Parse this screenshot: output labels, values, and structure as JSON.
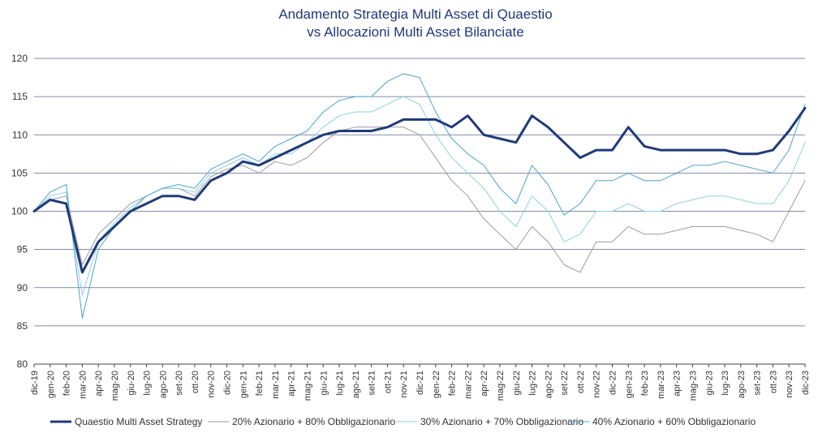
{
  "chart_data": {
    "type": "line",
    "title": "Andamento Strategia Multi Asset di Quaestio",
    "subtitle": "vs Allocazioni Multi Asset Bilanciate",
    "xlabel": "",
    "ylabel": "",
    "ylim": [
      80,
      120
    ],
    "yticks": [
      80,
      85,
      90,
      95,
      100,
      105,
      110,
      115,
      120
    ],
    "grid": true,
    "legend_position": "bottom",
    "x": [
      "dic-19",
      "gen-20",
      "feb-20",
      "mar-20",
      "apr-20",
      "mag-20",
      "giu-20",
      "lug-20",
      "ago-20",
      "set-20",
      "ott-20",
      "nov-20",
      "dic-20",
      "gen-21",
      "feb-21",
      "mar-21",
      "apr-21",
      "mag-21",
      "giu-21",
      "lug-21",
      "ago-21",
      "set-21",
      "ott-21",
      "nov-21",
      "dic-21",
      "gen-22",
      "feb-22",
      "mar-22",
      "apr-22",
      "mag-22",
      "giu-22",
      "lug-22",
      "ago-22",
      "set-22",
      "ott-22",
      "nov-22",
      "dic-22",
      "gen-23",
      "feb-23",
      "mar-23",
      "apr-23",
      "mag-23",
      "giu-23",
      "lug-23",
      "ago-23",
      "set-23",
      "ott-23",
      "nov-23",
      "dic-23"
    ],
    "series": [
      {
        "name": "Quaestio Multi Asset Strategy",
        "color": "#1f3a78",
        "width": 3,
        "values": [
          100,
          101.5,
          101,
          92,
          96,
          98,
          100,
          101,
          102,
          102,
          101.5,
          104,
          105,
          106.5,
          106,
          107,
          108,
          109,
          110,
          110.5,
          110.5,
          110.5,
          111,
          112,
          112,
          112,
          111,
          112.5,
          110,
          109.5,
          109,
          112.5,
          111,
          109,
          107,
          108,
          108,
          111,
          108.5,
          108,
          108,
          108,
          108,
          108,
          107.5,
          107.5,
          108,
          110.5,
          113.5
        ]
      },
      {
        "name": "20% Azionario + 80% Obbligazionario",
        "color": "#9a9aa4",
        "width": 1,
        "values": [
          100,
          101.5,
          102,
          93,
          97,
          99,
          101,
          102,
          103,
          103,
          102,
          104.5,
          105.5,
          106,
          105,
          106.5,
          106,
          107,
          109,
          110.5,
          111,
          111,
          111,
          111,
          110,
          107,
          104,
          102,
          99,
          97,
          95,
          98,
          96,
          93,
          92,
          96,
          96,
          98,
          97,
          97,
          97.5,
          98,
          98,
          98,
          97.5,
          97,
          96,
          100,
          104
        ]
      },
      {
        "name": "30% Azionario + 70% Obbligazionario",
        "color": "#8fd0e4",
        "width": 1,
        "values": [
          100,
          102,
          102.5,
          89,
          96,
          98.5,
          100.5,
          102,
          103,
          103,
          102.5,
          105,
          106,
          107,
          106,
          107.5,
          107.5,
          109,
          111,
          112.5,
          113,
          113,
          114,
          115,
          114,
          110,
          107,
          105,
          103,
          100,
          98,
          102,
          100,
          96,
          97,
          100,
          100,
          101,
          100,
          100,
          101,
          101.5,
          102,
          102,
          101.5,
          101,
          101,
          104,
          109
        ]
      },
      {
        "name": "40% Azionario + 60% Obbligazionario",
        "color": "#4fa2cf",
        "width": 1,
        "values": [
          100,
          102.5,
          103.5,
          86,
          95,
          98,
          100,
          102,
          103,
          103.5,
          103,
          105.5,
          106.5,
          107.5,
          106.5,
          108.5,
          109.5,
          110.5,
          113,
          114.5,
          115,
          115,
          117,
          118,
          117.5,
          113,
          109.5,
          107.5,
          106,
          103,
          101,
          106,
          103.5,
          99.5,
          101,
          104,
          104,
          105,
          104,
          104,
          105,
          106,
          106,
          106.5,
          106,
          105.5,
          105,
          108,
          114
        ]
      }
    ]
  }
}
